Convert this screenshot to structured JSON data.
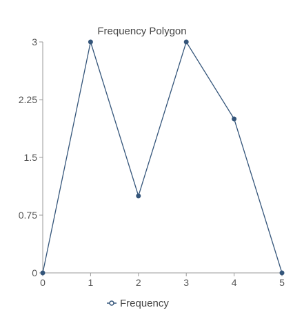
{
  "chart_data": {
    "type": "line",
    "title": "Frequency Polygon",
    "xlabel": "",
    "ylabel": "",
    "x": [
      0,
      1,
      2,
      3,
      4,
      5
    ],
    "series": [
      {
        "name": "Frequency",
        "values": [
          0,
          3,
          1,
          3,
          2,
          0
        ]
      }
    ],
    "xlim": [
      0,
      5
    ],
    "ylim": [
      0,
      3
    ],
    "x_ticks": [
      "0",
      "1",
      "2",
      "3",
      "4",
      "5"
    ],
    "y_ticks": [
      "0",
      "0.75",
      "1.5",
      "2.25",
      "3"
    ],
    "grid": false,
    "legend_position": "bottom",
    "colors": {
      "line": "#34557a",
      "axis": "#999999"
    }
  }
}
